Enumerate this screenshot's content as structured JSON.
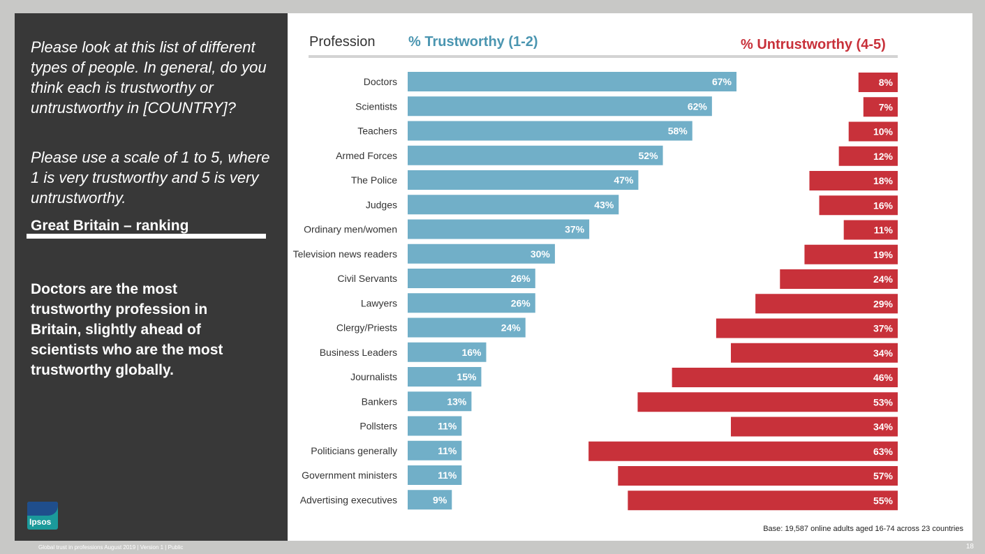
{
  "question": {
    "part1": "Please look at this list of different types of people. In general, do you think each is trustworthy or untrustworthy in [COUNTRY]?",
    "part2": "Please use a scale of 1 to 5, where 1 is very trustworthy and 5 is very untrustworthy."
  },
  "region_title": "Great Britain – ranking",
  "insight": "Doctors are the most trustworthy profession in Britain, slightly ahead of scientists who are the most trustworthy globally.",
  "logo_text": "Ipsos",
  "headers": {
    "profession": "Profession",
    "trustworthy": "% Trustworthy  (1-2)",
    "untrustworthy": "% Untrustworthy  (4-5)"
  },
  "base_note": "Base: 19,587 online adults aged 16-74 across 23 countries",
  "footer": "Global trust in professions August 2019 | Version 1 | Public",
  "page_number": "18",
  "colors": {
    "trust": "#71afc8",
    "untrust": "#c8313a",
    "dark_panel": "#383838"
  },
  "chart_data": {
    "type": "bar",
    "orientation": "horizontal",
    "categories": [
      "Doctors",
      "Scientists",
      "Teachers",
      "Armed Forces",
      "The Police",
      "Judges",
      "Ordinary men/women",
      "Television news readers",
      "Civil Servants",
      "Lawyers",
      "Clergy/Priests",
      "Business Leaders",
      "Journalists",
      "Bankers",
      "Pollsters",
      "Politicians generally",
      "Government ministers",
      "Advertising executives"
    ],
    "series": [
      {
        "name": "% Trustworthy (1-2)",
        "values": [
          67,
          62,
          58,
          52,
          47,
          43,
          37,
          30,
          26,
          26,
          24,
          16,
          15,
          13,
          11,
          11,
          11,
          9
        ],
        "labels": [
          "67%",
          "62%",
          "58%",
          "52%",
          "47%",
          "43%",
          "37%",
          "30%",
          "26%",
          "26%",
          "24%",
          "16%",
          "15%",
          "13%",
          "11%",
          "11%",
          "11%",
          "9%"
        ]
      },
      {
        "name": "% Untrustworthy (4-5)",
        "values": [
          8,
          7,
          10,
          12,
          18,
          16,
          11,
          19,
          24,
          29,
          37,
          34,
          46,
          53,
          34,
          63,
          57,
          55
        ],
        "labels": [
          "8%",
          "7%",
          "10%",
          "12%",
          "18%",
          "16%",
          "11%",
          "19%",
          "24%",
          "29%",
          "37%",
          "34%",
          "46%",
          "53%",
          "34%",
          "63%",
          "57%",
          "55%"
        ]
      }
    ],
    "title": "Great Britain – ranking",
    "xlim": [
      0,
      100
    ]
  }
}
